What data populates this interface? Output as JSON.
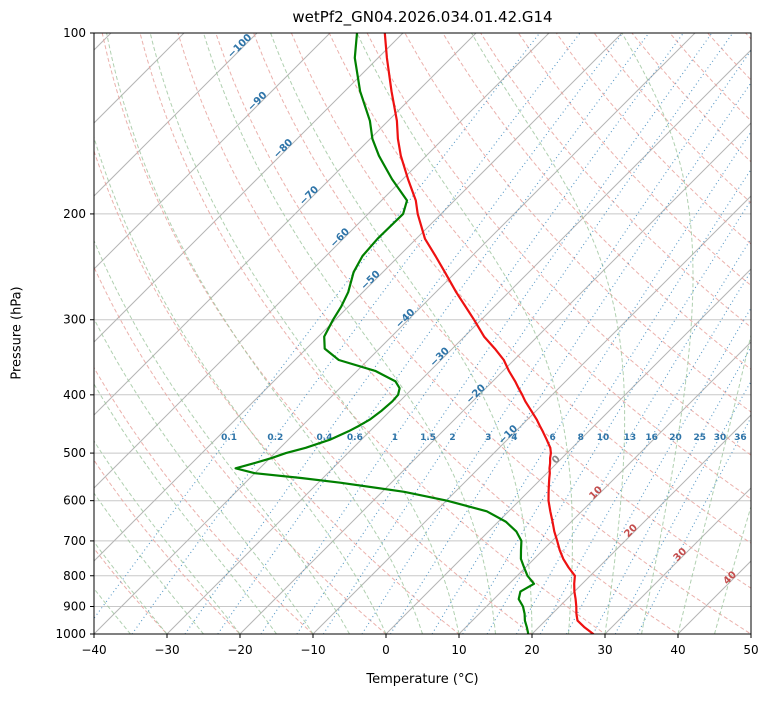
{
  "chart_data": {
    "type": "line",
    "variant": "skew-T log-P atmospheric sounding",
    "title": "wetPf2_GN04.2026.034.01.42.G14",
    "xlabel": "Temperature (°C)",
    "ylabel": "Pressure (hPa)",
    "xlim": [
      -40,
      50
    ],
    "ylim": [
      1000,
      100
    ],
    "x_ticks": [
      -40,
      -30,
      -20,
      -10,
      0,
      10,
      20,
      30,
      40,
      50
    ],
    "y_ticks": [
      100,
      200,
      300,
      400,
      500,
      600,
      700,
      800,
      900,
      1000
    ],
    "skew_degrees": 45,
    "grid": true,
    "pressure_hPa": [
      1000,
      975,
      950,
      925,
      900,
      875,
      850,
      825,
      800,
      775,
      750,
      725,
      700,
      675,
      650,
      625,
      600,
      580,
      560,
      550,
      540,
      530,
      520,
      510,
      500,
      490,
      475,
      460,
      450,
      440,
      425,
      410,
      400,
      390,
      380,
      365,
      350,
      335,
      320,
      300,
      285,
      270,
      250,
      235,
      220,
      200,
      190,
      175,
      160,
      150,
      140,
      125,
      110,
      100
    ],
    "series": [
      {
        "name": "dewpoint",
        "color": "#008000",
        "values_C": [
          19.5,
          18.4,
          17.2,
          16.2,
          15.0,
          13.4,
          12.6,
          13.4,
          11.4,
          9.8,
          8.2,
          7.0,
          5.8,
          3.8,
          1.0,
          -3.0,
          -9.9,
          -17.0,
          -27.0,
          -33.0,
          -40.0,
          -43.3,
          -41.5,
          -39.8,
          -38.5,
          -36.5,
          -34.3,
          -32.9,
          -32.2,
          -31.6,
          -31.2,
          -31.0,
          -31.1,
          -31.8,
          -33.3,
          -37.5,
          -44.0,
          -47.5,
          -49.2,
          -50.3,
          -51.0,
          -52.0,
          -54.0,
          -55.0,
          -55.3,
          -55.2,
          -56.5,
          -61.5,
          -66.5,
          -69.7,
          -72.5,
          -77.9,
          -83.2,
          -86.3
        ]
      },
      {
        "name": "temperature",
        "color": "#ee1111",
        "values_C": [
          28.4,
          26.3,
          24.4,
          23.3,
          22.3,
          21.2,
          20.0,
          18.9,
          17.9,
          15.9,
          14.0,
          12.3,
          10.7,
          9.0,
          7.4,
          5.7,
          4.0,
          2.8,
          1.6,
          1.0,
          0.4,
          -0.3,
          -0.9,
          -1.6,
          -2.2,
          -3.0,
          -4.6,
          -6.3,
          -7.5,
          -8.7,
          -10.7,
          -12.8,
          -14.1,
          -15.5,
          -16.9,
          -19.2,
          -21.4,
          -24.2,
          -27.3,
          -31.0,
          -34.0,
          -37.2,
          -41.5,
          -45.0,
          -48.8,
          -53.2,
          -55.3,
          -59.3,
          -63.5,
          -66.2,
          -68.8,
          -73.6,
          -78.8,
          -82.5
        ]
      }
    ],
    "background_lines": {
      "isotherms": {
        "step_C": 10,
        "color": "#b5b5b5",
        "style": "solid"
      },
      "dry_adiabats": {
        "color": "#e8a39d",
        "style": "dashed",
        "step_C": 10
      },
      "moist_adiabats": {
        "color": "#9cc49c",
        "style": "dashed",
        "step_C": 5
      },
      "mixing_ratio_lines": {
        "color": "#4f94c4",
        "style": "dotted"
      },
      "grid_color": "#c8c8c8"
    },
    "isotherm_labels": [
      {
        "t": -100,
        "p": 106,
        "color": "#2e74a8"
      },
      {
        "t": -90,
        "p": 131,
        "color": "#2e74a8"
      },
      {
        "t": -80,
        "p": 157,
        "color": "#2e74a8"
      },
      {
        "t": -70,
        "p": 188,
        "color": "#2e74a8"
      },
      {
        "t": -60,
        "p": 221,
        "color": "#2e74a8"
      },
      {
        "t": -50,
        "p": 260,
        "color": "#2e74a8"
      },
      {
        "t": -40,
        "p": 301,
        "color": "#2e74a8"
      },
      {
        "t": -30,
        "p": 349,
        "color": "#2e74a8"
      },
      {
        "t": -20,
        "p": 402,
        "color": "#2e74a8"
      },
      {
        "t": -10,
        "p": 470,
        "color": "#2e74a8"
      },
      {
        "t": 0,
        "p": 517,
        "color": "#8a8a8a"
      },
      {
        "t": 10,
        "p": 587,
        "color": "#c44e4e"
      },
      {
        "t": 20,
        "p": 679,
        "color": "#c44e4e"
      },
      {
        "t": 30,
        "p": 744,
        "color": "#c44e4e"
      },
      {
        "t": 40,
        "p": 813,
        "color": "#c44e4e"
      }
    ],
    "mixing_ratio_labels": {
      "values": [
        0.1,
        0.2,
        0.4,
        0.6,
        1,
        1.5,
        2,
        3,
        4,
        6,
        8,
        10,
        13,
        16,
        20,
        25,
        30,
        36
      ],
      "label_pressure_hPa": 470,
      "color": "#2e74a8"
    }
  }
}
